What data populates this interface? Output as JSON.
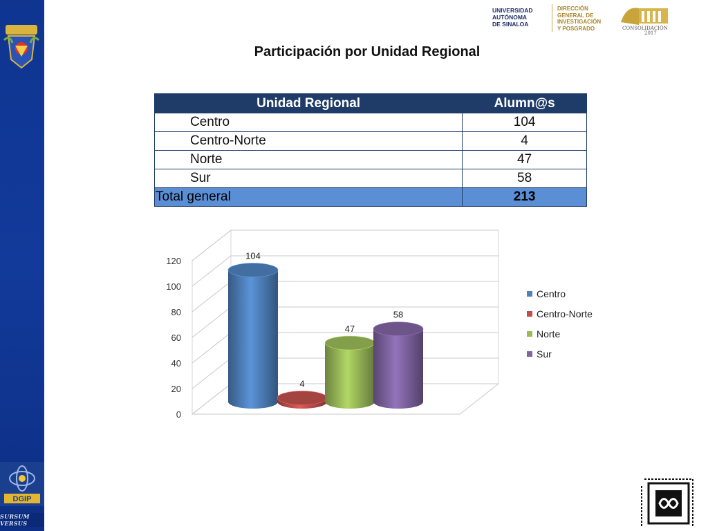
{
  "header": {
    "uas_lines": [
      "UNIVERSIDAD",
      "AUTÓNOMA",
      "DE SINALOA"
    ],
    "dgip_lines": [
      "DIRECCIÓN",
      "GENERAL DE",
      "INVESTIGACIÓN",
      "Y POSGRADO"
    ],
    "consolidacion": "CONSOLIDACIÓN",
    "year": "2017"
  },
  "title": "Participación por Unidad Regional",
  "table": {
    "headers": [
      "Unidad Regional",
      "Alumn@s"
    ],
    "rows": [
      [
        "Centro",
        "104"
      ],
      [
        "Centro-Norte",
        "4"
      ],
      [
        "Norte",
        "47"
      ],
      [
        "Sur",
        "58"
      ]
    ],
    "total": [
      "Total general",
      "213"
    ]
  },
  "chart_data": {
    "type": "bar",
    "categories": [
      "Centro",
      "Centro-Norte",
      "Norte",
      "Sur"
    ],
    "values": [
      104,
      4,
      47,
      58
    ],
    "colors": [
      "#4f81bd",
      "#c0504d",
      "#9bbb59",
      "#8064a2"
    ],
    "ylim": [
      0,
      120
    ],
    "yticks": [
      0,
      20,
      40,
      60,
      80,
      100,
      120
    ],
    "legend_position": "right",
    "grid": true,
    "style": "3d-cylinder"
  },
  "footer": {
    "sursum": "SURSUM VERSUS",
    "dgip_label": "DGIP"
  },
  "icons": [
    "uas-crest-icon",
    "dgip-logo-icon",
    "consolidacion-logo-icon",
    "academia-mexicana-ciencias-logo-icon"
  ]
}
